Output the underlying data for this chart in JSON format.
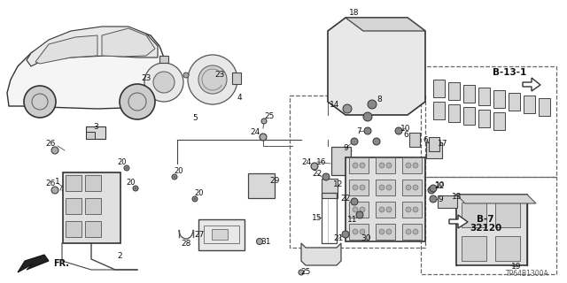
{
  "bg_color": "#ffffff",
  "fig_width": 6.4,
  "fig_height": 3.2,
  "diagram_code": "TP64B1300A",
  "ref_b13": "B-13-1",
  "ref_b7": "B-7",
  "ref_b7_num": "32120",
  "gray_light": "#cccccc",
  "gray_mid": "#aaaaaa",
  "gray_dark": "#888888",
  "black": "#111111",
  "line_color": "#333333"
}
